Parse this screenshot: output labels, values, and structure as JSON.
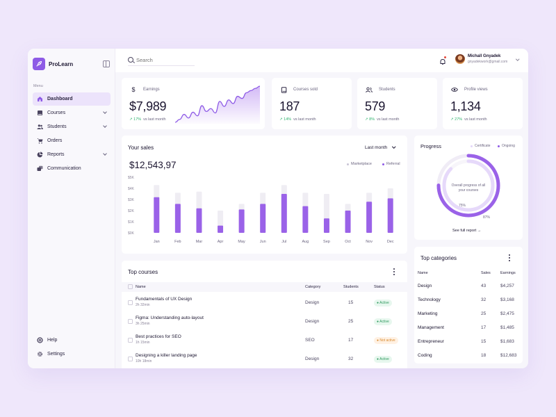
{
  "app": {
    "name": "ProLearn"
  },
  "sidebar": {
    "menu_label": "Menu",
    "items": [
      {
        "label": "Dashboard",
        "icon": "home-icon",
        "active": true
      },
      {
        "label": "Courses",
        "icon": "book-icon",
        "expandable": true
      },
      {
        "label": "Students",
        "icon": "users-icon",
        "expandable": true
      },
      {
        "label": "Orders",
        "icon": "cart-icon"
      },
      {
        "label": "Reports",
        "icon": "pie-icon",
        "expandable": true
      },
      {
        "label": "Communication",
        "icon": "chat-icon"
      }
    ],
    "bottom": [
      {
        "label": "Help",
        "icon": "help-icon"
      },
      {
        "label": "Settings",
        "icon": "gear-icon"
      }
    ]
  },
  "topbar": {
    "search_placeholder": "Search",
    "user": {
      "name": "Michall Gnyadek",
      "email": "gnyadekwork@gmail.com"
    }
  },
  "stats": [
    {
      "label": "Earnings",
      "value": "$7,989",
      "change": "17%",
      "suffix": "vs last month",
      "icon": "dollar-icon"
    },
    {
      "label": "Courses sold",
      "value": "187",
      "change": "14%",
      "suffix": "vs last month",
      "icon": "book-icon"
    },
    {
      "label": "Students",
      "value": "579",
      "change": "8%",
      "suffix": "vs last month",
      "icon": "users-icon"
    },
    {
      "label": "Profile views",
      "value": "1,134",
      "change": "27%",
      "suffix": "vs last month",
      "icon": "eye-icon"
    }
  ],
  "sales": {
    "title": "Your sales",
    "period": "Last month",
    "total": "$12,543,97",
    "legend": [
      "Marketplace",
      "Referral"
    ]
  },
  "progress": {
    "title": "Progress",
    "legend": [
      "Certificate",
      "Ongoing"
    ],
    "center_text": "Overall progress of all your courses",
    "outer_label": "75%",
    "inner_label": "87%",
    "link": "See full report",
    "outer_fraction": 0.75,
    "inner_fraction": 0.87
  },
  "courses": {
    "title": "Top courses",
    "headers": {
      "name": "Name",
      "category": "Category",
      "students": "Students",
      "status": "Status"
    },
    "rows": [
      {
        "name": "Fundamentals of UX Design",
        "duration": "2h 32min",
        "category": "Design",
        "students": "15",
        "status": "Active"
      },
      {
        "name": "Figma: Understanding auto-layout",
        "duration": "3h 25min",
        "category": "Design",
        "students": "25",
        "status": "Active"
      },
      {
        "name": "Best practices for SEO",
        "duration": "1h 15min",
        "category": "SEO",
        "students": "17",
        "status": "Not active"
      },
      {
        "name": "Designing a killer landing page",
        "duration": "10h 18min",
        "category": "Design",
        "students": "32",
        "status": "Active"
      }
    ]
  },
  "categories": {
    "title": "Top categories",
    "headers": {
      "name": "Name",
      "sales": "Sales",
      "earnings": "Earnings"
    },
    "rows": [
      {
        "name": "Design",
        "sales": "43",
        "earnings": "$4,257"
      },
      {
        "name": "Technology",
        "sales": "32",
        "earnings": "$3,168"
      },
      {
        "name": "Marketing",
        "sales": "25",
        "earnings": "$2,475"
      },
      {
        "name": "Management",
        "sales": "17",
        "earnings": "$1,485"
      },
      {
        "name": "Entrepreneur",
        "sales": "15",
        "earnings": "$1,683"
      },
      {
        "name": "Coding",
        "sales": "18",
        "earnings": "$12,683"
      }
    ]
  },
  "colors": {
    "accent": "#8e5be6",
    "accent_light": "#e9defb",
    "positive": "#2fb36d",
    "page_bg": "#efe7fb"
  },
  "chart_data": [
    {
      "type": "bar",
      "title": "Your sales",
      "categories": [
        "Jan",
        "Feb",
        "Mar",
        "Apr",
        "May",
        "Jun",
        "Jul",
        "Aug",
        "Sep",
        "Oct",
        "Nov",
        "Dec"
      ],
      "y_ticks": [
        "$5K",
        "$4K",
        "$3K",
        "$2K",
        "$1K",
        "$0K"
      ],
      "ylim": [
        0,
        5000
      ],
      "series": [
        {
          "name": "Marketplace",
          "values": [
            4300,
            3600,
            3700,
            2000,
            2600,
            3600,
            4300,
            3600,
            3500,
            2600,
            3600,
            4000
          ]
        },
        {
          "name": "Referral",
          "values": [
            3200,
            2600,
            2200,
            650,
            2100,
            2600,
            3500,
            2400,
            1300,
            2000,
            2800,
            3100
          ]
        }
      ],
      "grid": false,
      "legend": "top-right"
    },
    {
      "type": "area",
      "title": "",
      "x": [
        1,
        2,
        3,
        4,
        5,
        6,
        7,
        8,
        9,
        10,
        11,
        12,
        13,
        14,
        15,
        16,
        17,
        18,
        19,
        20
      ],
      "values": [
        0,
        8,
        22,
        12,
        28,
        18,
        46,
        30,
        38,
        26,
        58,
        44,
        62,
        52,
        72,
        66,
        82,
        88,
        94,
        100
      ]
    }
  ]
}
